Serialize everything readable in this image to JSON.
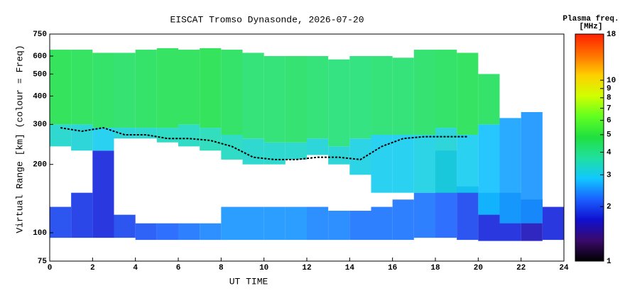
{
  "chart_data": {
    "type": "ionogram",
    "title": "EISCAT Tromso Dynasonde, 2026-07-20",
    "xlabel": "UT TIME",
    "ylabel": "Virtual Range [km] (colour = Freq)",
    "colorbar_title": [
      "Plasma freq.",
      "[MHz]"
    ],
    "xlim": [
      0,
      24
    ],
    "xticks": [
      0,
      2,
      4,
      6,
      8,
      10,
      12,
      14,
      16,
      18,
      20,
      22,
      24
    ],
    "ylim": [
      75,
      750
    ],
    "yticks": [
      75,
      100,
      200,
      300,
      400,
      500,
      600,
      750
    ],
    "ylog": true,
    "zlim": [
      1,
      18
    ],
    "zticks": [
      1,
      2,
      3,
      4,
      5,
      6,
      7,
      8,
      9,
      10,
      18
    ],
    "zlog": true,
    "colormap": [
      "#000000",
      "#3a0a6a",
      "#1010d0",
      "#1a60ff",
      "#10c8ff",
      "#20e0a0",
      "#20e040",
      "#60ff20",
      "#d0ff00",
      "#ffd000",
      "#ff7000",
      "#ff2000"
    ],
    "x": [
      0,
      1,
      2,
      3,
      4,
      5,
      6,
      7,
      8,
      9,
      10,
      11,
      12,
      13,
      14,
      15,
      16,
      17,
      18,
      19,
      20,
      21,
      22,
      23
    ],
    "layers": [
      {
        "low": [
          95,
          95,
          95,
          95,
          93,
          93,
          93,
          93,
          93,
          93,
          93,
          93,
          93,
          93,
          93,
          93,
          93,
          95,
          95,
          93,
          92,
          92,
          92,
          93
        ],
        "high": [
          130,
          150,
          230,
          120,
          110,
          110,
          110,
          110,
          130,
          130,
          130,
          130,
          130,
          125,
          125,
          130,
          140,
          150,
          230,
          160,
          150,
          150,
          140,
          130
        ],
        "freq": [
          2.0,
          1.9,
          1.8,
          2.0,
          2.1,
          2.2,
          2.3,
          2.4,
          2.5,
          2.5,
          2.5,
          2.5,
          2.4,
          2.4,
          2.3,
          2.3,
          2.3,
          2.3,
          2.2,
          2.0,
          1.8,
          1.8,
          1.6,
          1.8
        ]
      },
      {
        "low": [
          240,
          230,
          230,
          260,
          260,
          250,
          240,
          230,
          210,
          200,
          200,
          210,
          220,
          200,
          180,
          150,
          150,
          150,
          150,
          150,
          120,
          110,
          110,
          null
        ],
        "high": [
          300,
          300,
          290,
          290,
          290,
          290,
          300,
          290,
          270,
          260,
          250,
          250,
          260,
          240,
          260,
          270,
          270,
          270,
          290,
          270,
          300,
          320,
          340,
          null
        ],
        "freq": [
          3.3,
          3.2,
          3.0,
          3.2,
          3.3,
          3.4,
          3.4,
          3.5,
          3.4,
          3.3,
          3.3,
          3.3,
          3.2,
          3.2,
          3.1,
          3.0,
          3.0,
          3.1,
          3.2,
          3.0,
          2.8,
          2.6,
          2.5,
          null
        ]
      },
      {
        "low": [
          300,
          300,
          290,
          290,
          290,
          290,
          300,
          290,
          270,
          260,
          250,
          250,
          260,
          240,
          260,
          270,
          270,
          270,
          290,
          270,
          300,
          null,
          null,
          null
        ],
        "high": [
          640,
          640,
          620,
          620,
          640,
          650,
          640,
          650,
          640,
          620,
          600,
          600,
          600,
          580,
          600,
          600,
          590,
          640,
          640,
          620,
          500,
          null,
          null,
          null
        ],
        "freq": [
          4.7,
          4.6,
          4.5,
          4.4,
          4.5,
          4.6,
          4.6,
          4.7,
          4.5,
          4.3,
          4.3,
          4.4,
          4.3,
          4.2,
          4.2,
          4.3,
          4.3,
          4.4,
          4.5,
          4.6,
          4.5,
          null,
          null,
          null
        ]
      }
    ],
    "trace": {
      "color": "#000000",
      "values": [
        290,
        280,
        290,
        270,
        270,
        260,
        260,
        255,
        240,
        215,
        210,
        210,
        215,
        215,
        210,
        240,
        260,
        265,
        265,
        265,
        null,
        null,
        null,
        null
      ]
    }
  }
}
